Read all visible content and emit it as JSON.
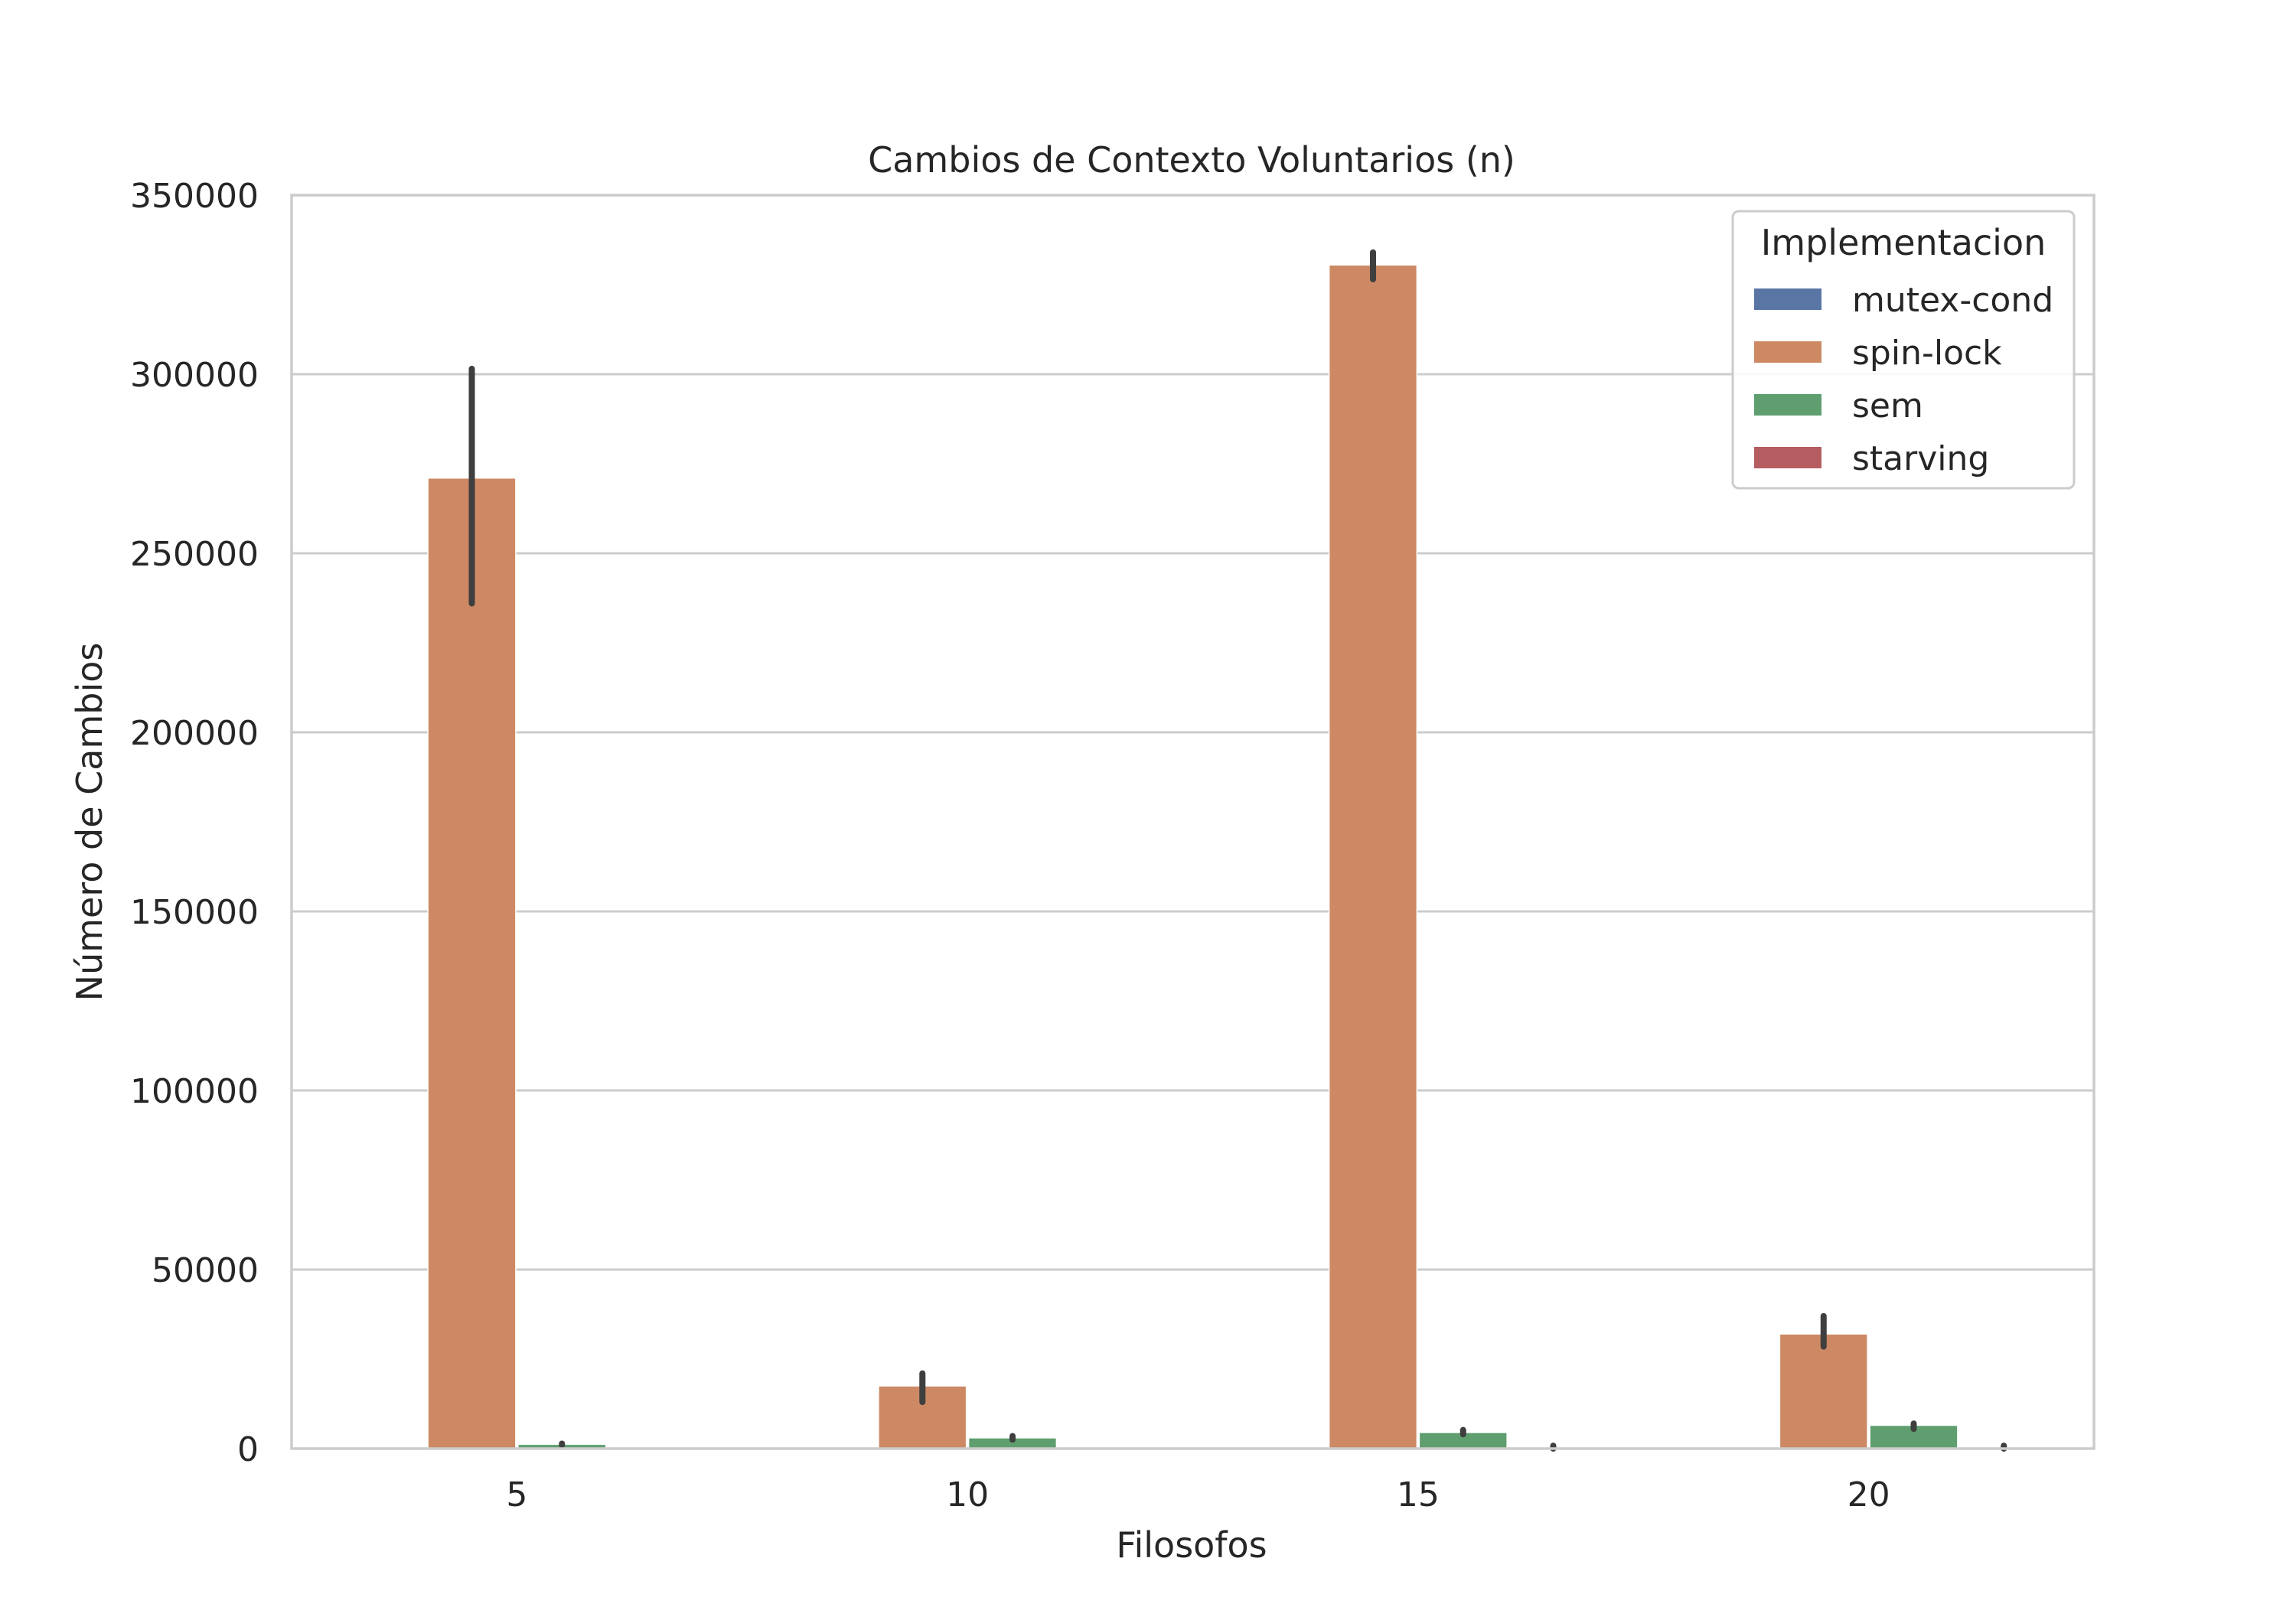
{
  "chart_data": {
    "type": "bar",
    "title": "Cambios de Contexto Voluntarios (n)",
    "xlabel": "Filosofos",
    "ylabel": "Número de Cambios",
    "categories": [
      "5",
      "10",
      "15",
      "20"
    ],
    "ylim": [
      0,
      350000
    ],
    "yticks": [
      "0",
      "50000",
      "100000",
      "150000",
      "200000",
      "250000",
      "300000",
      "350000"
    ],
    "grid": true,
    "legend": {
      "title": "Implementacion",
      "position": "top-right"
    },
    "series": [
      {
        "name": "mutex-cond",
        "color": "#5875a4",
        "values": [
          0,
          0,
          0,
          0
        ],
        "ci": [
          [
            0,
            0
          ],
          [
            0,
            0
          ],
          [
            0,
            0
          ],
          [
            0,
            0
          ]
        ]
      },
      {
        "name": "spin-lock",
        "color": "#cc8963",
        "values": [
          271000,
          17500,
          330500,
          32000
        ],
        "ci": [
          [
            236000,
            301500
          ],
          [
            13000,
            21000
          ],
          [
            326500,
            334000
          ],
          [
            28500,
            37000
          ]
        ]
      },
      {
        "name": "sem",
        "color": "#5f9e6e",
        "values": [
          1200,
          3000,
          4500,
          6500
        ],
        "ci": [
          [
            1000,
            1400
          ],
          [
            2500,
            3500
          ],
          [
            4000,
            5200
          ],
          [
            5500,
            7000
          ]
        ]
      },
      {
        "name": "starving",
        "color": "#b55d60",
        "values": [
          0,
          0,
          300,
          300
        ],
        "ci": [
          [
            0,
            0
          ],
          [
            0,
            0
          ],
          [
            0,
            800
          ],
          [
            0,
            800
          ]
        ]
      }
    ]
  }
}
